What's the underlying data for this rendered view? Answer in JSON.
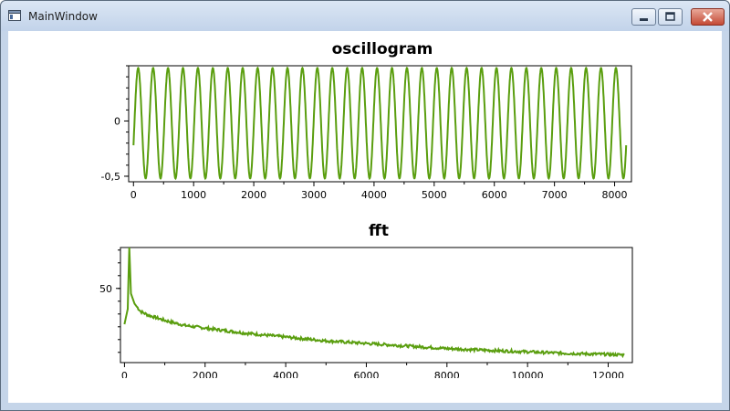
{
  "window": {
    "title": "MainWindow",
    "icon": "app-window-icon",
    "controls": [
      "minimize-icon",
      "maximize-icon",
      "close-icon"
    ]
  },
  "chart_data": [
    {
      "type": "line",
      "title": "oscillogram",
      "xlabel": "",
      "ylabel": "",
      "xlim": [
        -80,
        8280
      ],
      "ylim": [
        -0.55,
        0.5
      ],
      "x_ticks": [
        0,
        1000,
        2000,
        3000,
        4000,
        5000,
        6000,
        7000,
        8000
      ],
      "x_tick_labels": [
        "0",
        "1000",
        "2000",
        "3000",
        "4000",
        "5000",
        "6000",
        "7000",
        "8000"
      ],
      "y_ticks": [
        0,
        -0.5
      ],
      "y_tick_labels": [
        "0",
        "-0,5"
      ],
      "grid": false,
      "legend": "none",
      "color": "#5a9e0f",
      "series": [
        {
          "x": [
            0,
            100,
            200,
            250,
            450,
            650,
            1000,
            1500,
            2000,
            3000,
            4000,
            5000,
            6000,
            7000,
            8000,
            8192
          ],
          "y": [
            -0.22,
            0.48,
            -0.52,
            0.48,
            -0.52,
            0.48,
            -0.52,
            0.48,
            -0.52,
            0.48,
            -0.52,
            0.48,
            -0.52,
            0.48,
            -0.52,
            0.05
          ]
        }
      ],
      "frequency_periods": 33
    },
    {
      "type": "line",
      "title": "fft",
      "xlabel": "",
      "ylabel": "",
      "xlim": [
        -100,
        12600
      ],
      "ylim": [
        21,
        66
      ],
      "x_ticks": [
        0,
        2000,
        4000,
        6000,
        8000,
        10000,
        12000
      ],
      "x_tick_labels": [
        "0",
        "2000",
        "4000",
        "6000",
        "8000",
        "10000",
        "12000"
      ],
      "y_ticks": [
        50
      ],
      "y_tick_labels": [
        "50"
      ],
      "grid": false,
      "legend": "none",
      "color": "#5a9e0f",
      "series": [
        {
          "x": [
            0,
            80,
            120,
            160,
            250,
            400,
            600,
            1000,
            1500,
            2000,
            3000,
            4000,
            5000,
            6000,
            7000,
            8000,
            9000,
            10000,
            11000,
            12000,
            12400
          ],
          "y": [
            36,
            42,
            66,
            48,
            44,
            41,
            39.5,
            37.5,
            35.5,
            34.5,
            32.5,
            31,
            29.5,
            28.5,
            27.5,
            26.5,
            25.8,
            25.2,
            24.6,
            24.2,
            24
          ]
        }
      ]
    }
  ]
}
